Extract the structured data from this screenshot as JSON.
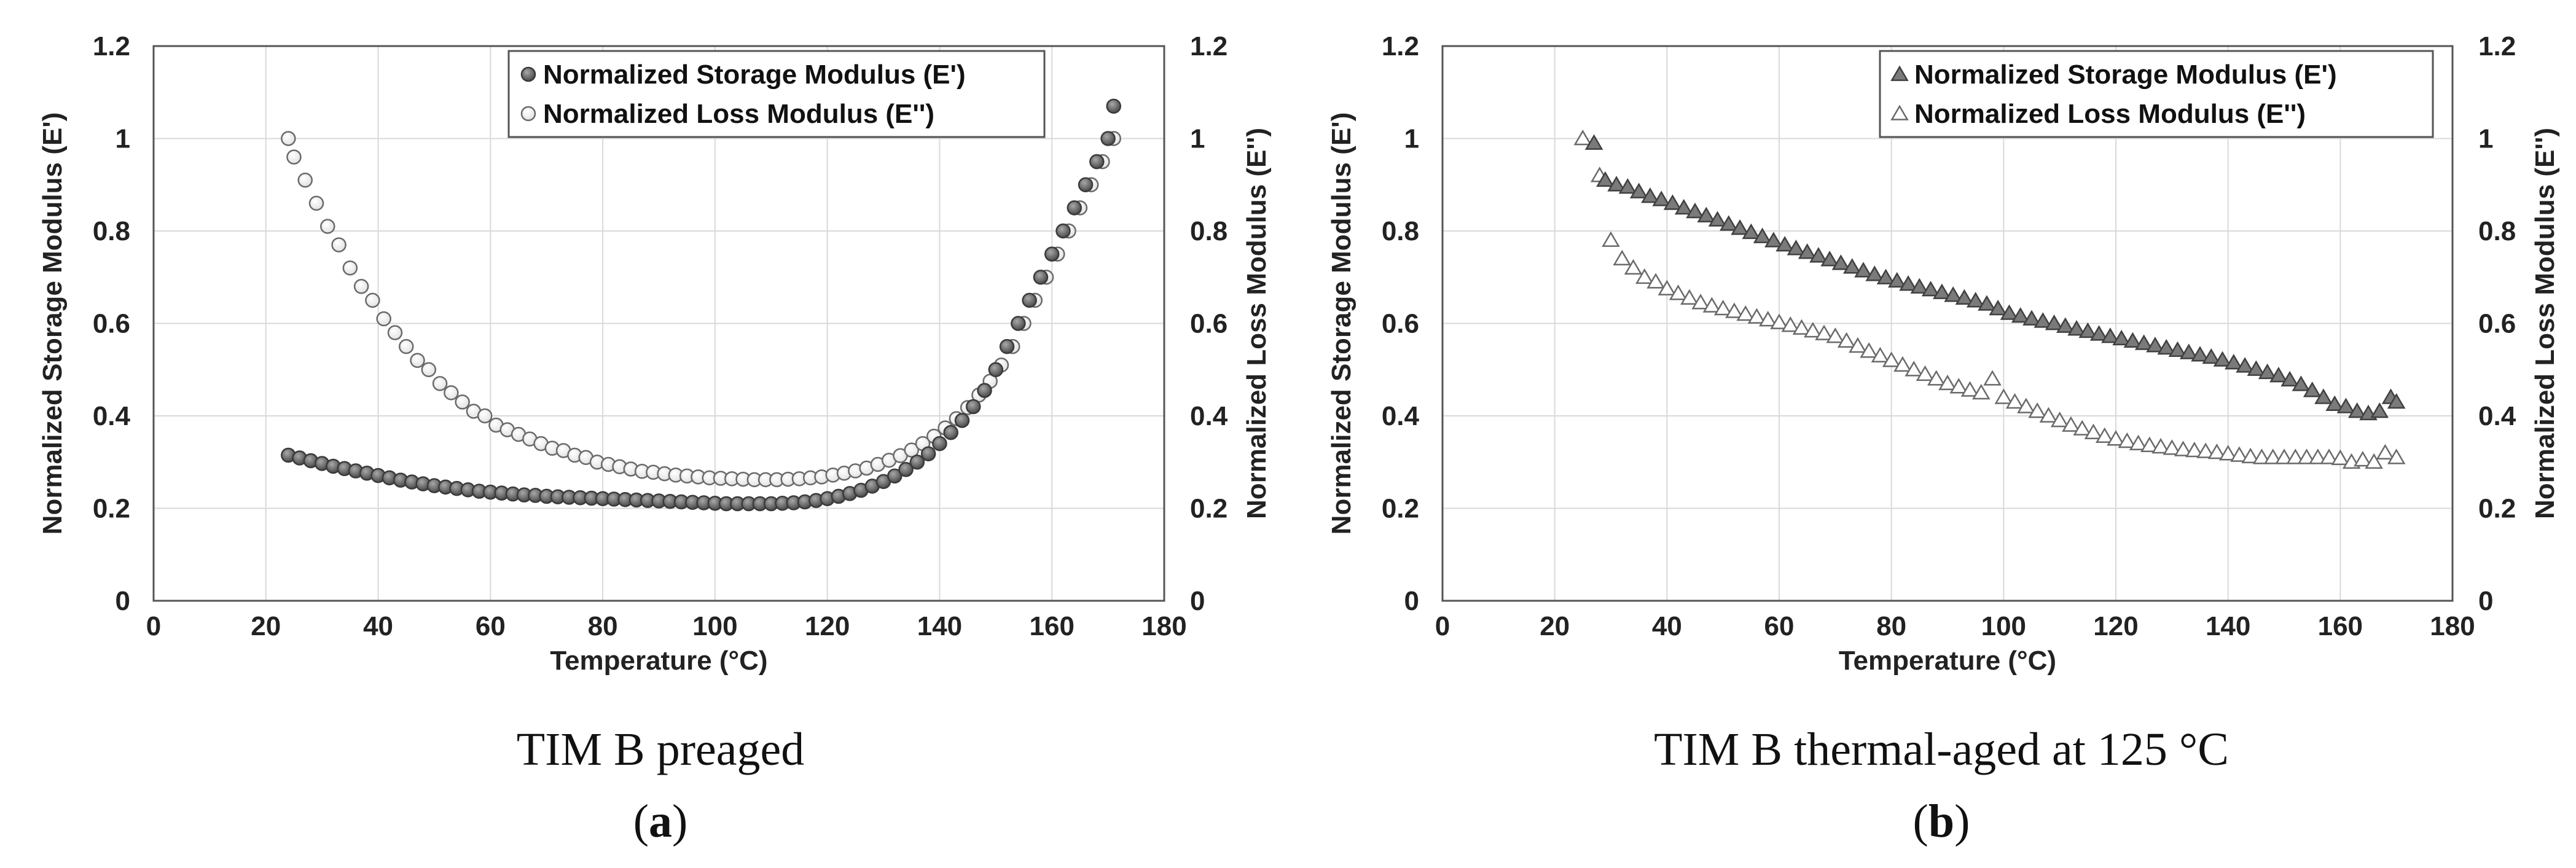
{
  "chart_data": [
    {
      "type": "scatter",
      "caption": "TIM B preaged",
      "panel_label": "a",
      "xlabel": "Temperature (°C)",
      "ylabel_left": "Normalized Storage Modulus (E')",
      "ylabel_right": "Normalized Loss Modulus (E'')",
      "xlim": [
        0,
        180
      ],
      "ylim_left": [
        0,
        1.2
      ],
      "ylim_right": [
        0,
        1.2
      ],
      "x_ticks": [
        "0",
        "20",
        "40",
        "60",
        "80",
        "100",
        "120",
        "140",
        "160",
        "180"
      ],
      "y_ticks_left": [
        "0",
        "0.2",
        "0.4",
        "0.6",
        "0.8",
        "1",
        "1.2"
      ],
      "y_ticks_right": [
        "0",
        "0.2",
        "0.4",
        "0.6",
        "0.8",
        "1",
        "1.2"
      ],
      "legend_position": "top-right",
      "series": [
        {
          "name": "Normalized Storage Modulus (E')",
          "marker": "circle-filled",
          "axis": "left",
          "x": [
            24,
            26,
            28,
            30,
            32,
            34,
            36,
            38,
            40,
            42,
            44,
            46,
            48,
            50,
            52,
            54,
            56,
            58,
            60,
            62,
            64,
            66,
            68,
            70,
            72,
            74,
            76,
            78,
            80,
            82,
            84,
            86,
            88,
            90,
            92,
            94,
            96,
            98,
            100,
            102,
            104,
            106,
            108,
            110,
            112,
            114,
            116,
            118,
            120,
            122,
            124,
            126,
            128,
            130,
            132,
            134,
            136,
            138,
            140,
            142,
            144,
            146,
            148,
            150,
            152,
            154,
            156,
            158,
            160,
            162,
            164,
            166,
            168,
            170,
            171
          ],
          "y": [
            0.315,
            0.309,
            0.303,
            0.297,
            0.291,
            0.286,
            0.281,
            0.276,
            0.271,
            0.266,
            0.261,
            0.257,
            0.253,
            0.249,
            0.246,
            0.243,
            0.24,
            0.237,
            0.235,
            0.233,
            0.231,
            0.229,
            0.228,
            0.226,
            0.225,
            0.224,
            0.223,
            0.222,
            0.221,
            0.22,
            0.219,
            0.218,
            0.217,
            0.216,
            0.215,
            0.214,
            0.213,
            0.212,
            0.211,
            0.21,
            0.21,
            0.21,
            0.21,
            0.21,
            0.211,
            0.212,
            0.214,
            0.217,
            0.221,
            0.226,
            0.232,
            0.239,
            0.248,
            0.258,
            0.27,
            0.284,
            0.3,
            0.318,
            0.34,
            0.364,
            0.39,
            0.42,
            0.455,
            0.5,
            0.55,
            0.6,
            0.65,
            0.7,
            0.75,
            0.8,
            0.85,
            0.9,
            0.95,
            1.0,
            1.07
          ]
        },
        {
          "name": "Normalized Loss Modulus (E'')",
          "marker": "circle-open",
          "axis": "right",
          "x": [
            24,
            25,
            27,
            29,
            31,
            33,
            35,
            37,
            39,
            41,
            43,
            45,
            47,
            49,
            51,
            53,
            55,
            57,
            59,
            61,
            63,
            65,
            67,
            69,
            71,
            73,
            75,
            77,
            79,
            81,
            83,
            85,
            87,
            89,
            91,
            93,
            95,
            97,
            99,
            101,
            103,
            105,
            107,
            109,
            111,
            113,
            115,
            117,
            119,
            121,
            123,
            125,
            127,
            129,
            131,
            133,
            135,
            137,
            139,
            141,
            143,
            145,
            147,
            149,
            151,
            153,
            155,
            157,
            159,
            161,
            163,
            165,
            167,
            169,
            171
          ],
          "y": [
            1.0,
            0.96,
            0.91,
            0.86,
            0.81,
            0.77,
            0.72,
            0.68,
            0.65,
            0.61,
            0.58,
            0.55,
            0.52,
            0.5,
            0.47,
            0.45,
            0.43,
            0.41,
            0.4,
            0.38,
            0.37,
            0.36,
            0.35,
            0.34,
            0.33,
            0.325,
            0.315,
            0.31,
            0.3,
            0.295,
            0.29,
            0.285,
            0.28,
            0.278,
            0.275,
            0.272,
            0.27,
            0.268,
            0.266,
            0.265,
            0.264,
            0.263,
            0.262,
            0.262,
            0.262,
            0.263,
            0.264,
            0.266,
            0.268,
            0.272,
            0.276,
            0.281,
            0.287,
            0.295,
            0.304,
            0.314,
            0.326,
            0.34,
            0.356,
            0.374,
            0.394,
            0.418,
            0.445,
            0.475,
            0.51,
            0.55,
            0.6,
            0.65,
            0.7,
            0.75,
            0.8,
            0.85,
            0.9,
            0.95,
            1.0
          ]
        }
      ]
    },
    {
      "type": "scatter",
      "caption": "TIM B thermal-aged at 125 °C",
      "panel_label": "b",
      "xlabel": "Temperature (°C)",
      "ylabel_left": "Normalized Storage Modulus (E')",
      "ylabel_right": "Normalized Loss Modulus (E'')",
      "xlim": [
        0,
        180
      ],
      "ylim_left": [
        0,
        1.2
      ],
      "ylim_right": [
        0,
        1.2
      ],
      "x_ticks": [
        "0",
        "20",
        "40",
        "60",
        "80",
        "100",
        "120",
        "140",
        "160",
        "180"
      ],
      "y_ticks_left": [
        "0",
        "0.2",
        "0.4",
        "0.6",
        "0.8",
        "1",
        "1.2"
      ],
      "y_ticks_right": [
        "0",
        "0.2",
        "0.4",
        "0.6",
        "0.8",
        "1",
        "1.2"
      ],
      "legend_position": "top-right",
      "series": [
        {
          "name": "Normalized Storage Modulus (E')",
          "marker": "triangle-filled",
          "axis": "left",
          "x": [
            27,
            29,
            31,
            33,
            35,
            37,
            39,
            41,
            43,
            45,
            47,
            49,
            51,
            53,
            55,
            57,
            59,
            61,
            63,
            65,
            67,
            69,
            71,
            73,
            75,
            77,
            79,
            81,
            83,
            85,
            87,
            89,
            91,
            93,
            95,
            97,
            99,
            101,
            103,
            105,
            107,
            109,
            111,
            113,
            115,
            117,
            119,
            121,
            123,
            125,
            127,
            129,
            131,
            133,
            135,
            137,
            139,
            141,
            143,
            145,
            147,
            149,
            151,
            153,
            155,
            157,
            159,
            161,
            163,
            165,
            167,
            169,
            170
          ],
          "y": [
            0.99,
            0.91,
            0.9,
            0.895,
            0.885,
            0.875,
            0.868,
            0.86,
            0.85,
            0.842,
            0.833,
            0.824,
            0.815,
            0.806,
            0.797,
            0.788,
            0.779,
            0.77,
            0.762,
            0.754,
            0.746,
            0.738,
            0.73,
            0.722,
            0.714,
            0.706,
            0.699,
            0.692,
            0.685,
            0.679,
            0.673,
            0.667,
            0.661,
            0.655,
            0.649,
            0.642,
            0.632,
            0.622,
            0.616,
            0.61,
            0.605,
            0.6,
            0.594,
            0.588,
            0.583,
            0.577,
            0.572,
            0.567,
            0.562,
            0.557,
            0.552,
            0.547,
            0.542,
            0.537,
            0.532,
            0.527,
            0.521,
            0.515,
            0.508,
            0.501,
            0.494,
            0.487,
            0.478,
            0.468,
            0.455,
            0.44,
            0.425,
            0.42,
            0.41,
            0.405,
            0.41,
            0.44,
            0.43
          ]
        },
        {
          "name": "Normalized Loss Modulus (E'')",
          "marker": "triangle-open",
          "axis": "right",
          "x": [
            25,
            28,
            30,
            32,
            34,
            36,
            38,
            40,
            42,
            44,
            46,
            48,
            50,
            52,
            54,
            56,
            58,
            60,
            62,
            64,
            66,
            68,
            70,
            72,
            74,
            76,
            78,
            80,
            82,
            84,
            86,
            88,
            90,
            92,
            94,
            96,
            98,
            100,
            102,
            104,
            106,
            108,
            110,
            112,
            114,
            116,
            118,
            120,
            122,
            124,
            126,
            128,
            130,
            132,
            134,
            136,
            138,
            140,
            142,
            144,
            146,
            148,
            150,
            152,
            154,
            156,
            158,
            160,
            162,
            164,
            166,
            168,
            170
          ],
          "y": [
            1.0,
            0.92,
            0.78,
            0.74,
            0.72,
            0.7,
            0.69,
            0.675,
            0.665,
            0.655,
            0.645,
            0.638,
            0.632,
            0.626,
            0.62,
            0.614,
            0.608,
            0.602,
            0.596,
            0.59,
            0.584,
            0.578,
            0.572,
            0.562,
            0.551,
            0.54,
            0.53,
            0.52,
            0.51,
            0.5,
            0.49,
            0.48,
            0.47,
            0.463,
            0.456,
            0.45,
            0.48,
            0.44,
            0.43,
            0.42,
            0.41,
            0.4,
            0.39,
            0.38,
            0.372,
            0.364,
            0.356,
            0.35,
            0.345,
            0.34,
            0.336,
            0.333,
            0.33,
            0.327,
            0.325,
            0.323,
            0.321,
            0.318,
            0.315,
            0.312,
            0.31,
            0.31,
            0.31,
            0.31,
            0.31,
            0.31,
            0.31,
            0.308,
            0.3,
            0.305,
            0.3,
            0.32,
            0.31
          ]
        }
      ]
    }
  ]
}
